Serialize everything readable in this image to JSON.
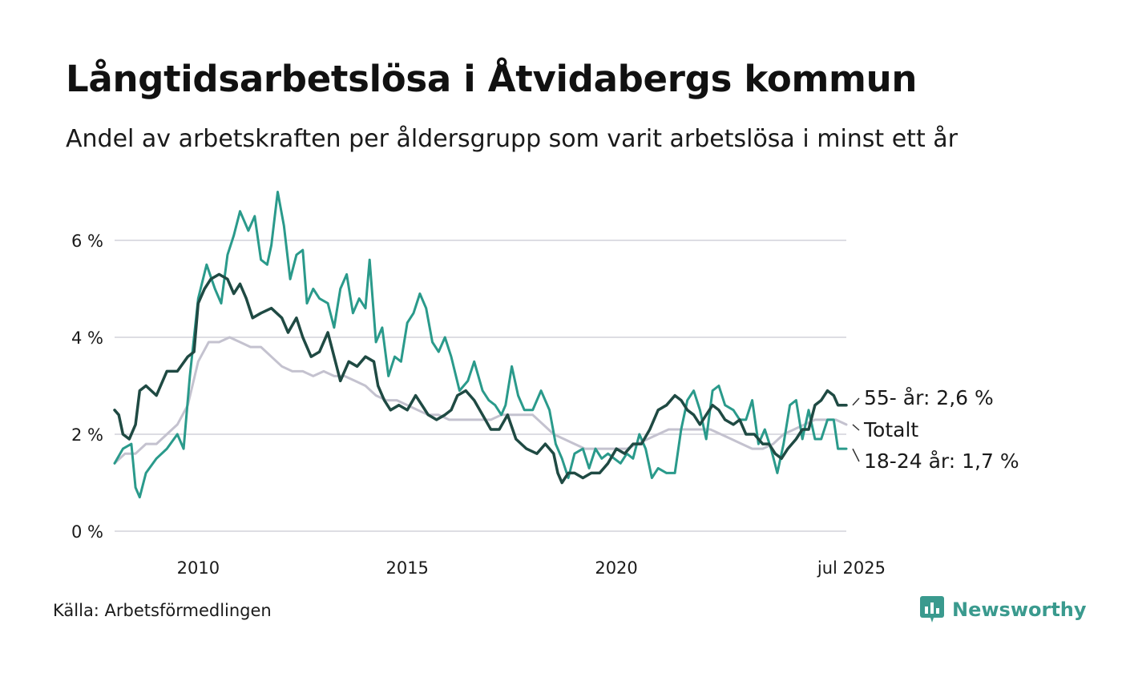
{
  "title": "Långtidsarbetslösa i Åtvidabergs kommun",
  "subtitle": "Andel av arbetskraften per åldersgrupp som varit arbetslösa i minst ett år",
  "source": "Källa: Arbetsförmedlingen",
  "brand": {
    "name": "Newsworthy",
    "icon": "newsworthy-logo-icon",
    "color": "#3a9a8e"
  },
  "chart_data": {
    "type": "line",
    "title": "Långtidsarbetslösa i Åtvidabergs kommun",
    "subtitle": "Andel av arbetskraften per åldersgrupp som varit arbetslösa i minst ett år",
    "xlabel": "",
    "ylabel": "",
    "x_ticks": [
      {
        "label": "2010",
        "value": 2010.0
      },
      {
        "label": "2015",
        "value": 2015.0
      },
      {
        "label": "2020",
        "value": 2020.0
      },
      {
        "label": "jul 2025",
        "value": 2025.5
      }
    ],
    "y_ticks": [
      {
        "label": "0 %",
        "value": 0
      },
      {
        "label": "2 %",
        "value": 2
      },
      {
        "label": "4 %",
        "value": 4
      },
      {
        "label": "6 %",
        "value": 6
      }
    ],
    "xlim": [
      2008.0,
      2025.5
    ],
    "ylim": [
      0,
      7
    ],
    "grid": "horizontal",
    "legend": "end labels at the right of the lines",
    "series": [
      {
        "name": "Totalt",
        "end_label": "Totalt",
        "color": "#c4c2cf",
        "points": [
          [
            2008.0,
            1.4
          ],
          [
            2008.25,
            1.6
          ],
          [
            2008.5,
            1.6
          ],
          [
            2008.75,
            1.8
          ],
          [
            2009.0,
            1.8
          ],
          [
            2009.25,
            2.0
          ],
          [
            2009.5,
            2.2
          ],
          [
            2009.75,
            2.6
          ],
          [
            2010.0,
            3.5
          ],
          [
            2010.25,
            3.9
          ],
          [
            2010.5,
            3.9
          ],
          [
            2010.75,
            4.0
          ],
          [
            2011.0,
            3.9
          ],
          [
            2011.25,
            3.8
          ],
          [
            2011.5,
            3.8
          ],
          [
            2011.75,
            3.6
          ],
          [
            2012.0,
            3.4
          ],
          [
            2012.25,
            3.3
          ],
          [
            2012.5,
            3.3
          ],
          [
            2012.75,
            3.2
          ],
          [
            2013.0,
            3.3
          ],
          [
            2013.25,
            3.2
          ],
          [
            2013.5,
            3.2
          ],
          [
            2013.75,
            3.1
          ],
          [
            2014.0,
            3.0
          ],
          [
            2014.25,
            2.8
          ],
          [
            2014.5,
            2.7
          ],
          [
            2014.75,
            2.7
          ],
          [
            2015.0,
            2.6
          ],
          [
            2015.25,
            2.5
          ],
          [
            2015.5,
            2.4
          ],
          [
            2015.75,
            2.4
          ],
          [
            2016.0,
            2.3
          ],
          [
            2016.25,
            2.3
          ],
          [
            2016.5,
            2.3
          ],
          [
            2016.75,
            2.3
          ],
          [
            2017.0,
            2.3
          ],
          [
            2017.25,
            2.4
          ],
          [
            2017.5,
            2.4
          ],
          [
            2017.75,
            2.4
          ],
          [
            2018.0,
            2.4
          ],
          [
            2018.25,
            2.2
          ],
          [
            2018.5,
            2.0
          ],
          [
            2018.75,
            1.9
          ],
          [
            2019.0,
            1.8
          ],
          [
            2019.25,
            1.7
          ],
          [
            2019.5,
            1.7
          ],
          [
            2019.75,
            1.7
          ],
          [
            2020.0,
            1.7
          ],
          [
            2020.25,
            1.7
          ],
          [
            2020.5,
            1.8
          ],
          [
            2020.75,
            1.9
          ],
          [
            2021.0,
            2.0
          ],
          [
            2021.25,
            2.1
          ],
          [
            2021.5,
            2.1
          ],
          [
            2021.75,
            2.1
          ],
          [
            2022.0,
            2.1
          ],
          [
            2022.25,
            2.1
          ],
          [
            2022.5,
            2.0
          ],
          [
            2022.75,
            1.9
          ],
          [
            2023.0,
            1.8
          ],
          [
            2023.25,
            1.7
          ],
          [
            2023.5,
            1.7
          ],
          [
            2023.75,
            1.8
          ],
          [
            2024.0,
            2.0
          ],
          [
            2024.25,
            2.1
          ],
          [
            2024.5,
            2.2
          ],
          [
            2024.75,
            2.3
          ],
          [
            2025.0,
            2.3
          ],
          [
            2025.25,
            2.3
          ],
          [
            2025.5,
            2.2
          ]
        ]
      },
      {
        "name": "18-24 år",
        "end_label": "18-24 år: 1,7 %",
        "color": "#2a9a8b",
        "points": [
          [
            2008.0,
            1.4
          ],
          [
            2008.2,
            1.7
          ],
          [
            2008.4,
            1.8
          ],
          [
            2008.5,
            0.9
          ],
          [
            2008.6,
            0.7
          ],
          [
            2008.75,
            1.2
          ],
          [
            2009.0,
            1.5
          ],
          [
            2009.25,
            1.7
          ],
          [
            2009.5,
            2.0
          ],
          [
            2009.65,
            1.7
          ],
          [
            2009.8,
            3.2
          ],
          [
            2010.0,
            4.8
          ],
          [
            2010.2,
            5.5
          ],
          [
            2010.4,
            5.0
          ],
          [
            2010.55,
            4.7
          ],
          [
            2010.7,
            5.7
          ],
          [
            2010.85,
            6.1
          ],
          [
            2011.0,
            6.6
          ],
          [
            2011.2,
            6.2
          ],
          [
            2011.35,
            6.5
          ],
          [
            2011.5,
            5.6
          ],
          [
            2011.65,
            5.5
          ],
          [
            2011.75,
            5.9
          ],
          [
            2011.9,
            7.0
          ],
          [
            2012.05,
            6.3
          ],
          [
            2012.2,
            5.2
          ],
          [
            2012.35,
            5.7
          ],
          [
            2012.5,
            5.8
          ],
          [
            2012.6,
            4.7
          ],
          [
            2012.75,
            5.0
          ],
          [
            2012.9,
            4.8
          ],
          [
            2013.1,
            4.7
          ],
          [
            2013.25,
            4.2
          ],
          [
            2013.4,
            5.0
          ],
          [
            2013.55,
            5.3
          ],
          [
            2013.7,
            4.5
          ],
          [
            2013.85,
            4.8
          ],
          [
            2014.0,
            4.6
          ],
          [
            2014.1,
            5.6
          ],
          [
            2014.25,
            3.9
          ],
          [
            2014.4,
            4.2
          ],
          [
            2014.55,
            3.2
          ],
          [
            2014.7,
            3.6
          ],
          [
            2014.85,
            3.5
          ],
          [
            2015.0,
            4.3
          ],
          [
            2015.15,
            4.5
          ],
          [
            2015.3,
            4.9
          ],
          [
            2015.45,
            4.6
          ],
          [
            2015.6,
            3.9
          ],
          [
            2015.75,
            3.7
          ],
          [
            2015.9,
            4.0
          ],
          [
            2016.05,
            3.6
          ],
          [
            2016.25,
            2.9
          ],
          [
            2016.45,
            3.1
          ],
          [
            2016.6,
            3.5
          ],
          [
            2016.8,
            2.9
          ],
          [
            2016.95,
            2.7
          ],
          [
            2017.1,
            2.6
          ],
          [
            2017.25,
            2.4
          ],
          [
            2017.35,
            2.6
          ],
          [
            2017.5,
            3.4
          ],
          [
            2017.65,
            2.8
          ],
          [
            2017.8,
            2.5
          ],
          [
            2018.0,
            2.5
          ],
          [
            2018.2,
            2.9
          ],
          [
            2018.4,
            2.5
          ],
          [
            2018.55,
            1.8
          ],
          [
            2018.7,
            1.5
          ],
          [
            2018.85,
            1.1
          ],
          [
            2019.0,
            1.6
          ],
          [
            2019.2,
            1.7
          ],
          [
            2019.35,
            1.3
          ],
          [
            2019.5,
            1.7
          ],
          [
            2019.65,
            1.5
          ],
          [
            2019.8,
            1.6
          ],
          [
            2019.95,
            1.5
          ],
          [
            2020.1,
            1.4
          ],
          [
            2020.25,
            1.6
          ],
          [
            2020.4,
            1.5
          ],
          [
            2020.55,
            2.0
          ],
          [
            2020.7,
            1.7
          ],
          [
            2020.85,
            1.1
          ],
          [
            2021.0,
            1.3
          ],
          [
            2021.2,
            1.2
          ],
          [
            2021.4,
            1.2
          ],
          [
            2021.55,
            2.1
          ],
          [
            2021.7,
            2.7
          ],
          [
            2021.85,
            2.9
          ],
          [
            2022.0,
            2.5
          ],
          [
            2022.15,
            1.9
          ],
          [
            2022.3,
            2.9
          ],
          [
            2022.45,
            3.0
          ],
          [
            2022.6,
            2.6
          ],
          [
            2022.8,
            2.5
          ],
          [
            2022.95,
            2.3
          ],
          [
            2023.1,
            2.3
          ],
          [
            2023.25,
            2.7
          ],
          [
            2023.4,
            1.8
          ],
          [
            2023.55,
            2.1
          ],
          [
            2023.7,
            1.7
          ],
          [
            2023.85,
            1.2
          ],
          [
            2024.0,
            1.8
          ],
          [
            2024.15,
            2.6
          ],
          [
            2024.3,
            2.7
          ],
          [
            2024.45,
            1.9
          ],
          [
            2024.6,
            2.5
          ],
          [
            2024.75,
            1.9
          ],
          [
            2024.9,
            1.9
          ],
          [
            2025.05,
            2.3
          ],
          [
            2025.2,
            2.3
          ],
          [
            2025.3,
            1.7
          ],
          [
            2025.5,
            1.7
          ]
        ]
      },
      {
        "name": "55- år",
        "end_label": "55- år: 2,6 %",
        "color": "#1f4a43",
        "points": [
          [
            2008.0,
            2.5
          ],
          [
            2008.1,
            2.4
          ],
          [
            2008.2,
            2.0
          ],
          [
            2008.35,
            1.9
          ],
          [
            2008.5,
            2.2
          ],
          [
            2008.6,
            2.9
          ],
          [
            2008.75,
            3.0
          ],
          [
            2009.0,
            2.8
          ],
          [
            2009.25,
            3.3
          ],
          [
            2009.5,
            3.3
          ],
          [
            2009.75,
            3.6
          ],
          [
            2009.9,
            3.7
          ],
          [
            2010.0,
            4.7
          ],
          [
            2010.15,
            5.0
          ],
          [
            2010.3,
            5.2
          ],
          [
            2010.5,
            5.3
          ],
          [
            2010.7,
            5.2
          ],
          [
            2010.85,
            4.9
          ],
          [
            2011.0,
            5.1
          ],
          [
            2011.15,
            4.8
          ],
          [
            2011.3,
            4.4
          ],
          [
            2011.5,
            4.5
          ],
          [
            2011.75,
            4.6
          ],
          [
            2012.0,
            4.4
          ],
          [
            2012.15,
            4.1
          ],
          [
            2012.35,
            4.4
          ],
          [
            2012.5,
            4.0
          ],
          [
            2012.7,
            3.6
          ],
          [
            2012.9,
            3.7
          ],
          [
            2013.1,
            4.1
          ],
          [
            2013.25,
            3.6
          ],
          [
            2013.4,
            3.1
          ],
          [
            2013.6,
            3.5
          ],
          [
            2013.8,
            3.4
          ],
          [
            2014.0,
            3.6
          ],
          [
            2014.2,
            3.5
          ],
          [
            2014.3,
            3.0
          ],
          [
            2014.45,
            2.7
          ],
          [
            2014.6,
            2.5
          ],
          [
            2014.8,
            2.6
          ],
          [
            2015.0,
            2.5
          ],
          [
            2015.2,
            2.8
          ],
          [
            2015.35,
            2.6
          ],
          [
            2015.5,
            2.4
          ],
          [
            2015.7,
            2.3
          ],
          [
            2015.9,
            2.4
          ],
          [
            2016.05,
            2.5
          ],
          [
            2016.2,
            2.8
          ],
          [
            2016.4,
            2.9
          ],
          [
            2016.6,
            2.7
          ],
          [
            2016.8,
            2.4
          ],
          [
            2017.0,
            2.1
          ],
          [
            2017.2,
            2.1
          ],
          [
            2017.4,
            2.4
          ],
          [
            2017.6,
            1.9
          ],
          [
            2017.85,
            1.7
          ],
          [
            2018.1,
            1.6
          ],
          [
            2018.3,
            1.8
          ],
          [
            2018.5,
            1.6
          ],
          [
            2018.6,
            1.2
          ],
          [
            2018.7,
            1.0
          ],
          [
            2018.85,
            1.2
          ],
          [
            2019.0,
            1.2
          ],
          [
            2019.2,
            1.1
          ],
          [
            2019.4,
            1.2
          ],
          [
            2019.6,
            1.2
          ],
          [
            2019.8,
            1.4
          ],
          [
            2020.0,
            1.7
          ],
          [
            2020.2,
            1.6
          ],
          [
            2020.4,
            1.8
          ],
          [
            2020.6,
            1.8
          ],
          [
            2020.8,
            2.1
          ],
          [
            2021.0,
            2.5
          ],
          [
            2021.2,
            2.6
          ],
          [
            2021.4,
            2.8
          ],
          [
            2021.55,
            2.7
          ],
          [
            2021.7,
            2.5
          ],
          [
            2021.85,
            2.4
          ],
          [
            2022.0,
            2.2
          ],
          [
            2022.15,
            2.4
          ],
          [
            2022.3,
            2.6
          ],
          [
            2022.45,
            2.5
          ],
          [
            2022.6,
            2.3
          ],
          [
            2022.8,
            2.2
          ],
          [
            2022.95,
            2.3
          ],
          [
            2023.1,
            2.0
          ],
          [
            2023.3,
            2.0
          ],
          [
            2023.5,
            1.8
          ],
          [
            2023.65,
            1.8
          ],
          [
            2023.8,
            1.6
          ],
          [
            2023.95,
            1.5
          ],
          [
            2024.1,
            1.7
          ],
          [
            2024.3,
            1.9
          ],
          [
            2024.45,
            2.1
          ],
          [
            2024.6,
            2.1
          ],
          [
            2024.75,
            2.6
          ],
          [
            2024.9,
            2.7
          ],
          [
            2025.05,
            2.9
          ],
          [
            2025.2,
            2.8
          ],
          [
            2025.3,
            2.6
          ],
          [
            2025.5,
            2.6
          ]
        ]
      }
    ]
  }
}
